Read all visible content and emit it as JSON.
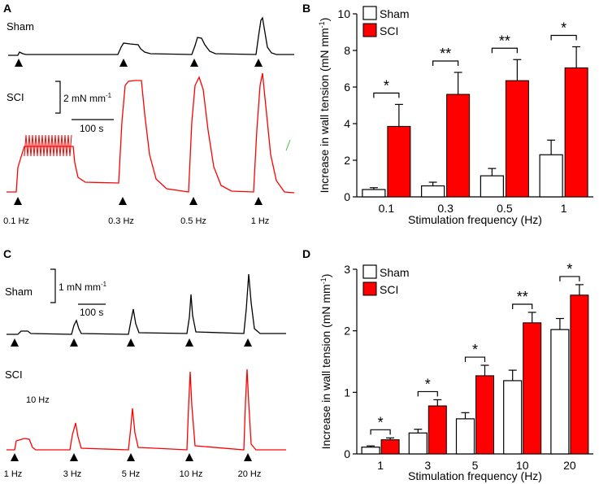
{
  "colors": {
    "sham": "#000000",
    "sci": "#ff0000",
    "sci_edge": "#000000",
    "background": "#ffffff"
  },
  "panels": {
    "A": {
      "letter": "A",
      "sham_label": "Sham",
      "sci_label": "SCI",
      "scale_y": "2 mN mm",
      "scale_y_exp": "-1",
      "scale_x": "100 s",
      "stimuli": [
        "0.1 Hz",
        "0.3 Hz",
        "0.5 Hz",
        "1 Hz"
      ]
    },
    "C": {
      "letter": "C",
      "sham_label": "Sham",
      "sci_label": "SCI",
      "scale_y": "1 mN mm",
      "scale_y_exp": "-1",
      "scale_x": "100 s",
      "inset_note": "10 Hz",
      "stimuli": [
        "1 Hz",
        "3 Hz",
        "5 Hz",
        "10 Hz",
        "20 Hz"
      ]
    }
  },
  "chart_data": [
    {
      "panel": "B",
      "letter": "B",
      "type": "bar",
      "title": "",
      "xlabel": "Stimulation frequency (Hz)",
      "ylabel": "Increase in wall tension (mN mm",
      "ylabel_exp": "-1",
      "ylabel_close": ")",
      "categories": [
        "0.1",
        "0.3",
        "0.5",
        "1"
      ],
      "ylim": [
        0,
        10
      ],
      "yticks": [
        0,
        2,
        4,
        6,
        8,
        10
      ],
      "ytick_labels": [
        "0",
        "2",
        "4",
        "6",
        "8",
        "10"
      ],
      "series": [
        {
          "name": "Sham",
          "values": [
            0.4,
            0.6,
            1.15,
            2.3
          ],
          "errors": [
            0.1,
            0.2,
            0.4,
            0.8
          ]
        },
        {
          "name": "SCI",
          "values": [
            3.85,
            5.6,
            6.35,
            7.05
          ],
          "errors": [
            1.2,
            1.2,
            1.15,
            1.15
          ]
        }
      ],
      "significance": [
        "*",
        "**",
        "**",
        "*"
      ],
      "legend": "top-left"
    },
    {
      "panel": "D",
      "letter": "D",
      "type": "bar",
      "title": "",
      "xlabel": "Stimulation frequency (Hz)",
      "ylabel": "Increase in wall tension (mN mm",
      "ylabel_exp": "-1",
      "ylabel_close": ")",
      "categories": [
        "1",
        "3",
        "5",
        "10",
        "20"
      ],
      "ylim": [
        0,
        3
      ],
      "yticks": [
        0,
        1,
        2,
        3
      ],
      "ytick_labels": [
        "0",
        "1",
        "2",
        "3"
      ],
      "series": [
        {
          "name": "Sham",
          "values": [
            0.11,
            0.34,
            0.57,
            1.19,
            2.02
          ],
          "errors": [
            0.02,
            0.06,
            0.1,
            0.17,
            0.18
          ]
        },
        {
          "name": "SCI",
          "values": [
            0.23,
            0.78,
            1.27,
            2.13,
            2.58
          ],
          "errors": [
            0.03,
            0.1,
            0.17,
            0.17,
            0.17
          ]
        }
      ],
      "significance": [
        "*",
        "*",
        "*",
        "**",
        "*"
      ],
      "legend": "top-left"
    }
  ]
}
